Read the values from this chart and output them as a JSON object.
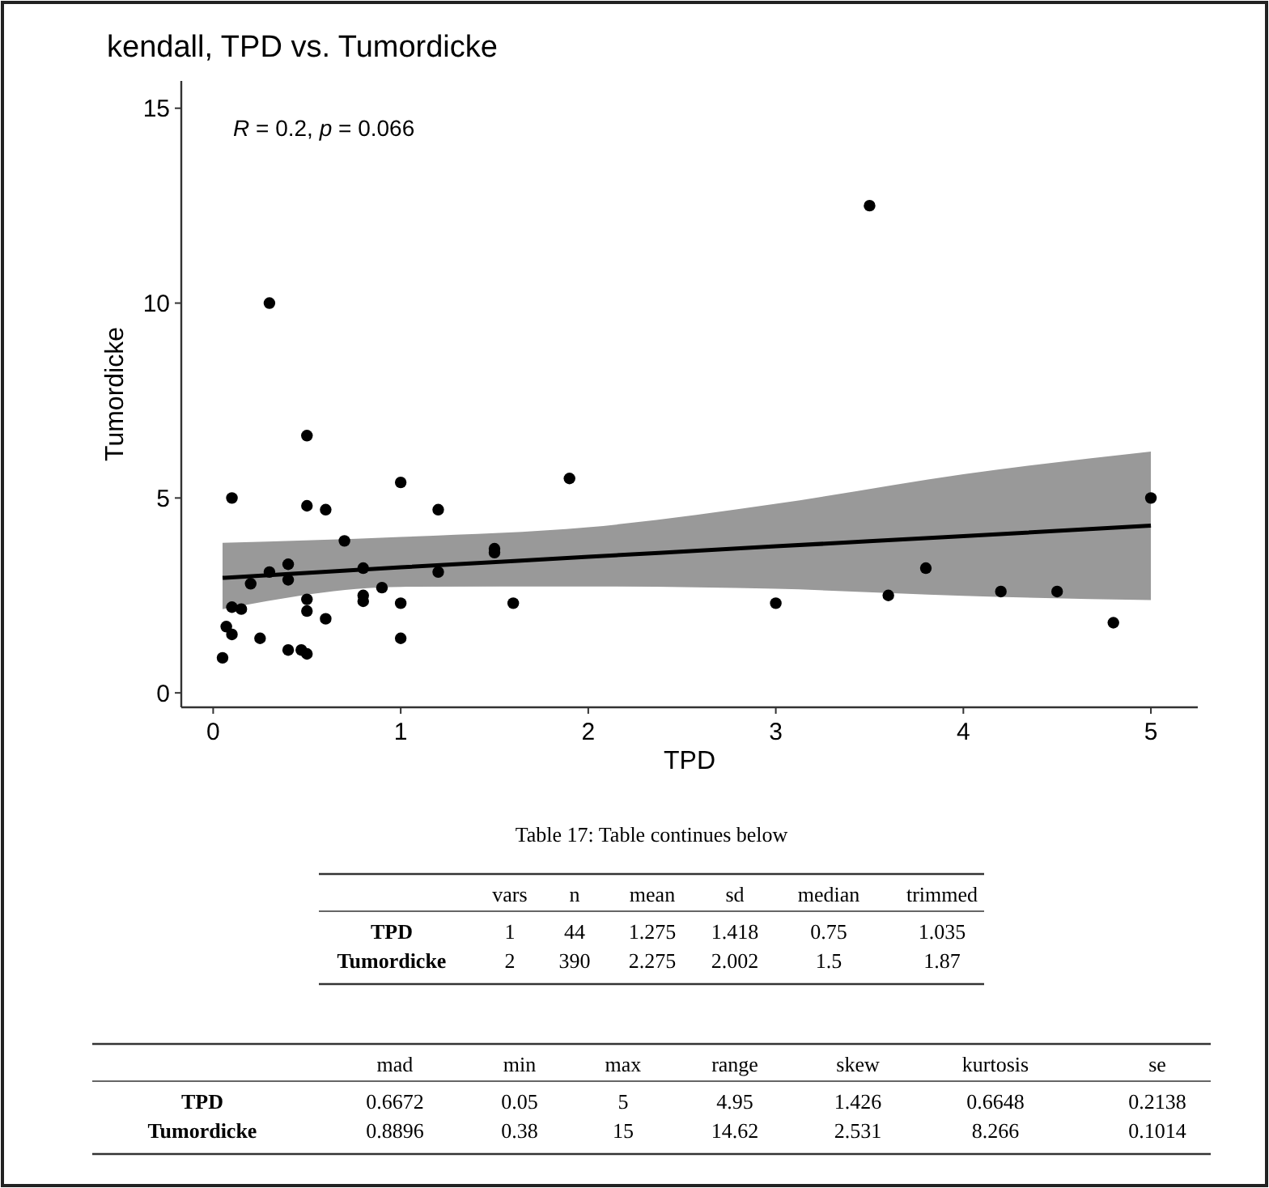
{
  "chart_data": [
    {
      "type": "scatter",
      "title": "kendall, TPD vs. Tumordicke",
      "xlabel": "TPD",
      "ylabel": "Tumordicke",
      "annotations": [
        "R = 0.2, p = 0.066"
      ],
      "xlim": [
        -0.17,
        5.25
      ],
      "ylim": [
        -0.37,
        15.7
      ],
      "xticks": [
        0,
        1,
        2,
        3,
        4,
        5
      ],
      "yticks": [
        0,
        5,
        10,
        15
      ],
      "grid": false,
      "series": [
        {
          "type": "line",
          "color": "#000000",
          "line_style": "solid",
          "x": [
            0.05,
            1,
            2,
            3,
            4,
            5
          ],
          "values": [
            2.95,
            3.22,
            3.49,
            3.76,
            4.02,
            4.29
          ],
          "lower": [
            2.15,
            2.72,
            2.73,
            2.67,
            2.49,
            2.38
          ],
          "upper": [
            3.85,
            4.0,
            4.25,
            4.85,
            5.61,
            6.19
          ]
        },
        {
          "type": "scatter",
          "marker": "circle",
          "color": "#000000",
          "x": [
            0.05,
            0.07,
            0.1,
            0.1,
            0.1,
            0.15,
            0.2,
            0.25,
            0.3,
            0.3,
            0.4,
            0.4,
            0.4,
            0.47,
            0.5,
            0.5,
            0.5,
            0.5,
            0.5,
            0.6,
            0.6,
            0.7,
            0.8,
            0.8,
            0.8,
            0.9,
            1.0,
            1.0,
            1.0,
            1.2,
            1.2,
            1.5,
            1.5,
            1.6,
            1.9,
            3.0,
            3.5,
            3.6,
            3.8,
            4.2,
            4.5,
            4.8,
            5.0
          ],
          "values": [
            0.9,
            1.7,
            1.5,
            2.2,
            5.0,
            2.15,
            2.8,
            1.4,
            10.0,
            3.1,
            3.3,
            2.9,
            1.1,
            1.1,
            1.0,
            6.6,
            4.8,
            2.4,
            2.1,
            4.7,
            1.9,
            3.9,
            3.2,
            2.5,
            2.35,
            2.7,
            5.4,
            2.3,
            1.4,
            4.7,
            3.1,
            3.7,
            3.6,
            2.3,
            5.5,
            2.3,
            12.5,
            2.5,
            3.2,
            2.6,
            2.6,
            1.8,
            5.0
          ]
        }
      ]
    },
    {
      "type": "other",
      "title": "Table 17: Table continues below",
      "categories": [
        "vars",
        "n",
        "mean",
        "sd",
        "median",
        "trimmed"
      ],
      "y_categories": [
        "TPD",
        "Tumordicke"
      ],
      "cell_labels": [
        [
          "1",
          "44",
          "1.275",
          "1.418",
          "0.75",
          "1.035"
        ],
        [
          "2",
          "390",
          "2.275",
          "2.002",
          "1.5",
          "1.87"
        ]
      ]
    },
    {
      "type": "other",
      "categories": [
        "mad",
        "min",
        "max",
        "range",
        "skew",
        "kurtosis",
        "se"
      ],
      "y_categories": [
        "TPD",
        "Tumordicke"
      ],
      "cell_labels": [
        [
          "0.6672",
          "0.05",
          "5",
          "4.95",
          "1.426",
          "0.6648",
          "0.2138"
        ],
        [
          "0.8896",
          "0.38",
          "15",
          "14.62",
          "2.531",
          "8.266",
          "0.1014"
        ]
      ]
    }
  ]
}
